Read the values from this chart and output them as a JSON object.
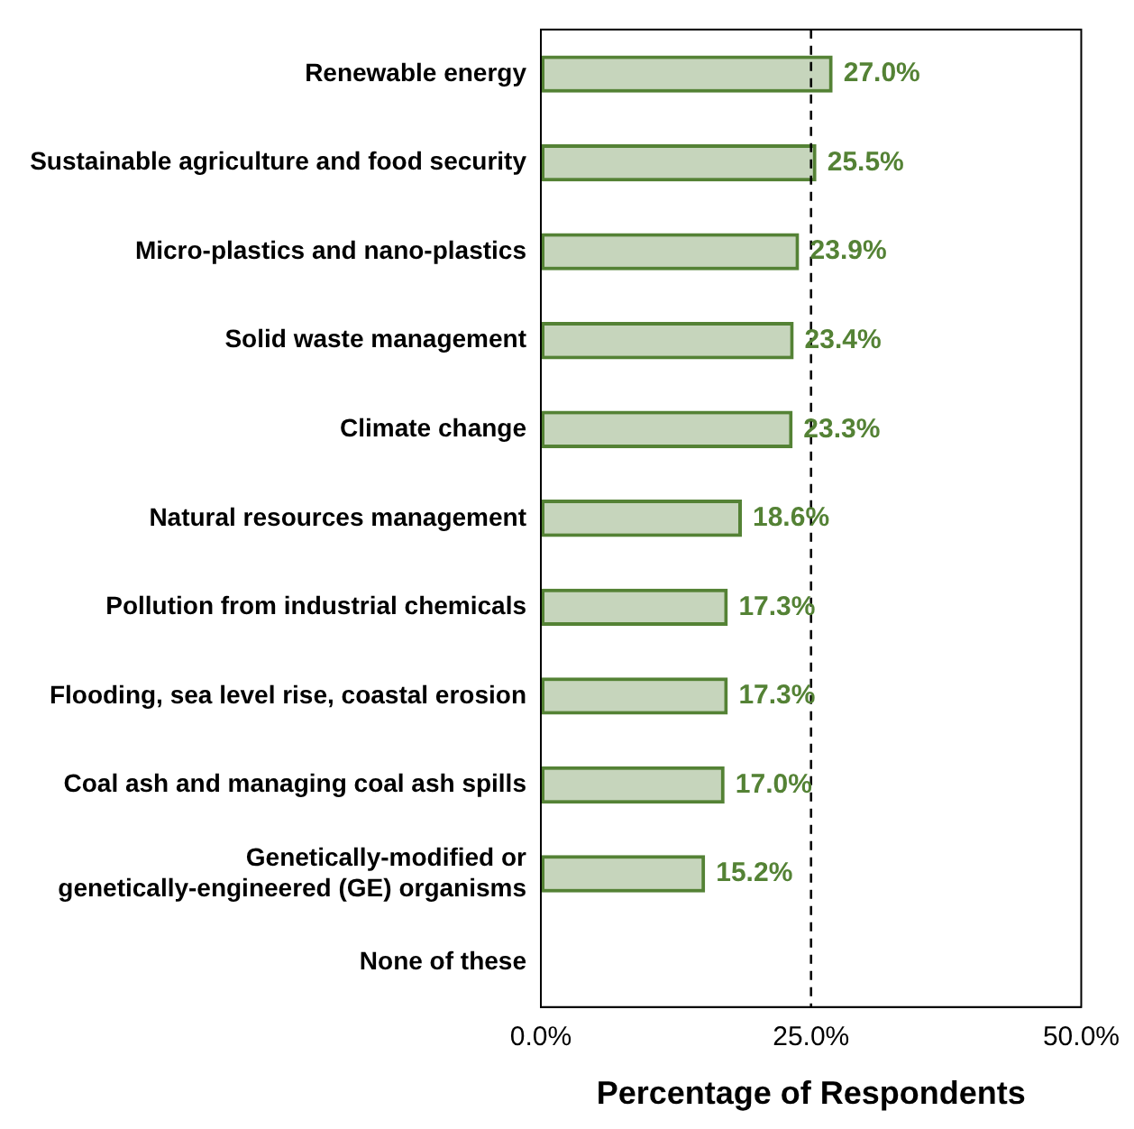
{
  "chart_data": {
    "type": "bar",
    "orientation": "horizontal",
    "xlabel": "Percentage of Respondents",
    "categories": [
      "Renewable energy",
      "Sustainable agriculture and food security",
      "Micro-plastics and nano-plastics",
      "Solid waste management",
      "Climate change",
      "Natural resources management",
      "Pollution from industrial chemicals",
      "Flooding, sea level rise, coastal erosion",
      "Coal ash and managing coal ash spills",
      "Genetically-modified or genetically-engineered (GE) organisms",
      "None of these"
    ],
    "values": [
      27.0,
      25.5,
      23.9,
      23.4,
      23.3,
      18.6,
      17.3,
      17.3,
      17.0,
      15.2,
      null
    ],
    "value_labels": [
      "27.0%",
      "25.5%",
      "23.9%",
      "23.4%",
      "23.3%",
      "18.6%",
      "17.3%",
      "17.3%",
      "17.0%",
      "15.2%",
      null
    ],
    "color": "#548235",
    "xlim": [
      0,
      50
    ],
    "xticks": [
      {
        "value": 0,
        "label": "0.0%"
      },
      {
        "value": 25,
        "label": "25.0%"
      },
      {
        "value": 50,
        "label": "50.0%"
      }
    ],
    "ref_lines": [
      {
        "axis": "x",
        "value": 25,
        "line_style": "dashed",
        "color": "#000000"
      }
    ],
    "grid": false,
    "legend": false
  }
}
